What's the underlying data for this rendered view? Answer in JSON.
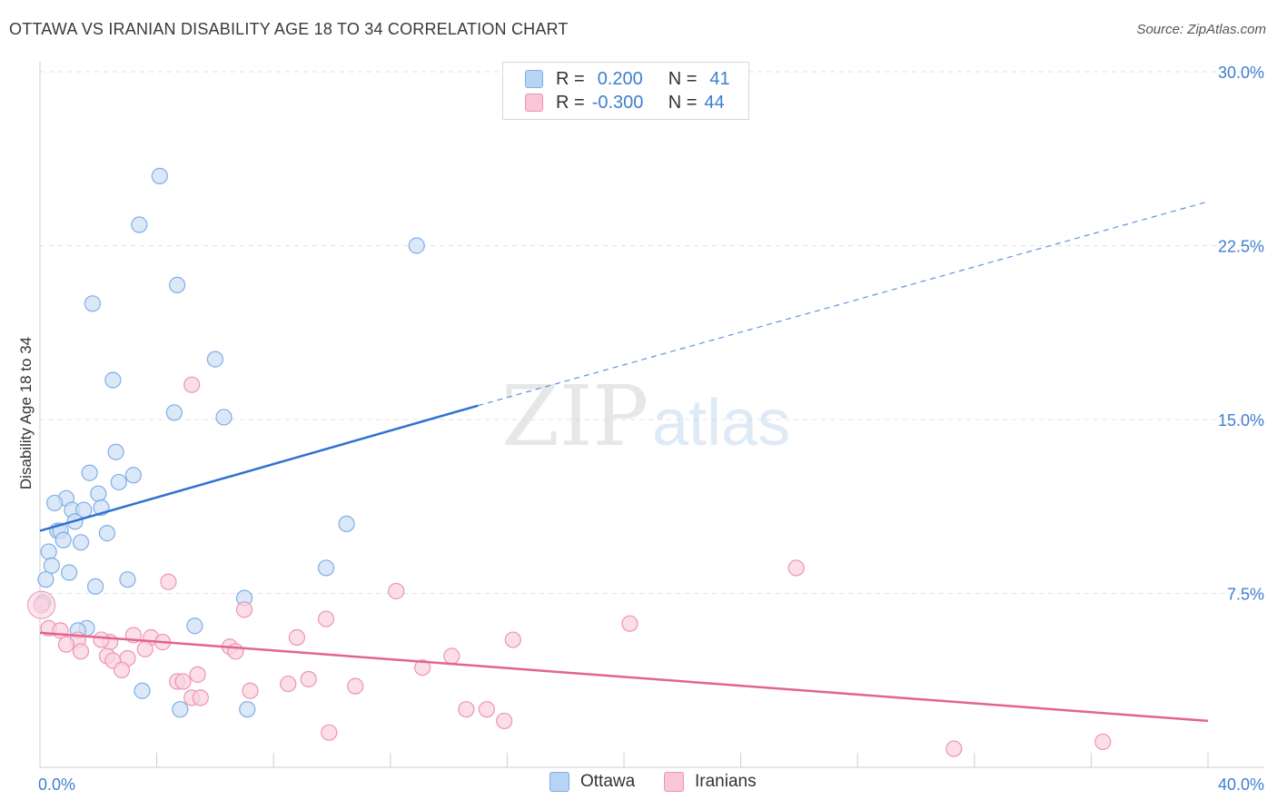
{
  "title": "OTTAWA VS IRANIAN DISABILITY AGE 18 TO 34 CORRELATION CHART",
  "source": "Source: ZipAtlas.com",
  "watermark": {
    "zip": "ZIP",
    "atlas": "atlas"
  },
  "legend": {
    "rows": [
      {
        "r_label": "R =",
        "r_value": "0.200",
        "n_label": "N =",
        "n_value": "41",
        "color": "#b8d4f4",
        "border": "#7faee6"
      },
      {
        "r_label": "R =",
        "r_value": "-0.300",
        "n_label": "N =",
        "n_value": "44",
        "color": "#f9c6d6",
        "border": "#ee94b2"
      }
    ]
  },
  "bottom_legend": [
    {
      "label": "Ottawa",
      "color": "#b8d4f4",
      "border": "#7faee6"
    },
    {
      "label": "Iranians",
      "color": "#f9c6d6",
      "border": "#ee94b2"
    }
  ],
  "chart_data": {
    "type": "scatter",
    "title": "OTTAWA VS IRANIAN DISABILITY AGE 18 TO 34 CORRELATION CHART",
    "xlabel": "",
    "ylabel": "Disability Age 18 to 34",
    "xlim": [
      0,
      40
    ],
    "ylim": [
      0,
      30
    ],
    "x_tick_labels": [
      "0.0%",
      "40.0%"
    ],
    "y_ticks": [
      7.5,
      15.0,
      22.5,
      30.0
    ],
    "y_tick_labels": [
      "7.5%",
      "15.0%",
      "22.5%",
      "30.0%"
    ],
    "grid": "horizontal dashed",
    "series": [
      {
        "name": "Ottawa",
        "color": "#7faee6",
        "fill": "#cfe0f6",
        "trend": {
          "x": [
            0,
            15
          ],
          "y": [
            10.2,
            15.6
          ],
          "extended_x": [
            15,
            40
          ],
          "extended_y": [
            15.6,
            24.4
          ]
        },
        "points": [
          [
            4.1,
            25.5
          ],
          [
            3.4,
            23.4
          ],
          [
            12.9,
            22.5
          ],
          [
            4.7,
            20.8
          ],
          [
            1.8,
            20.0
          ],
          [
            6.0,
            17.6
          ],
          [
            2.5,
            16.7
          ],
          [
            4.6,
            15.3
          ],
          [
            6.3,
            15.1
          ],
          [
            2.6,
            13.6
          ],
          [
            1.7,
            12.7
          ],
          [
            3.2,
            12.6
          ],
          [
            2.7,
            12.3
          ],
          [
            2.0,
            11.8
          ],
          [
            0.9,
            11.6
          ],
          [
            0.5,
            11.4
          ],
          [
            2.1,
            11.2
          ],
          [
            1.1,
            11.1
          ],
          [
            1.5,
            11.1
          ],
          [
            1.2,
            10.6
          ],
          [
            0.6,
            10.2
          ],
          [
            0.7,
            10.2
          ],
          [
            2.3,
            10.1
          ],
          [
            1.4,
            9.7
          ],
          [
            0.8,
            9.8
          ],
          [
            10.5,
            10.5
          ],
          [
            0.3,
            9.3
          ],
          [
            0.4,
            8.7
          ],
          [
            1.0,
            8.4
          ],
          [
            9.8,
            8.6
          ],
          [
            0.2,
            8.1
          ],
          [
            3.0,
            8.1
          ],
          [
            1.9,
            7.8
          ],
          [
            7.0,
            7.3
          ],
          [
            0.1,
            7.1
          ],
          [
            5.3,
            6.1
          ],
          [
            1.6,
            6.0
          ],
          [
            1.3,
            5.9
          ],
          [
            3.5,
            3.3
          ],
          [
            4.8,
            2.5
          ],
          [
            7.1,
            2.5
          ]
        ]
      },
      {
        "name": "Iranians",
        "color": "#ee94b2",
        "fill": "#fad3df",
        "trend": {
          "x": [
            0,
            40
          ],
          "y": [
            5.8,
            2.0
          ]
        },
        "points": [
          [
            0.05,
            7.0
          ],
          [
            5.2,
            16.5
          ],
          [
            25.9,
            8.6
          ],
          [
            4.4,
            8.0
          ],
          [
            12.2,
            7.6
          ],
          [
            7.0,
            6.8
          ],
          [
            9.8,
            6.4
          ],
          [
            20.2,
            6.2
          ],
          [
            0.3,
            6.0
          ],
          [
            0.7,
            5.9
          ],
          [
            3.2,
            5.7
          ],
          [
            3.8,
            5.6
          ],
          [
            8.8,
            5.6
          ],
          [
            16.2,
            5.5
          ],
          [
            1.3,
            5.5
          ],
          [
            2.4,
            5.4
          ],
          [
            2.1,
            5.5
          ],
          [
            4.2,
            5.4
          ],
          [
            0.9,
            5.3
          ],
          [
            6.5,
            5.2
          ],
          [
            3.6,
            5.1
          ],
          [
            6.7,
            5.0
          ],
          [
            1.4,
            5.0
          ],
          [
            14.1,
            4.8
          ],
          [
            2.3,
            4.8
          ],
          [
            3.0,
            4.7
          ],
          [
            2.5,
            4.6
          ],
          [
            13.1,
            4.3
          ],
          [
            2.8,
            4.2
          ],
          [
            5.4,
            4.0
          ],
          [
            4.7,
            3.7
          ],
          [
            4.9,
            3.7
          ],
          [
            9.2,
            3.8
          ],
          [
            8.5,
            3.6
          ],
          [
            10.8,
            3.5
          ],
          [
            7.2,
            3.3
          ],
          [
            5.2,
            3.0
          ],
          [
            5.5,
            3.0
          ],
          [
            14.6,
            2.5
          ],
          [
            15.3,
            2.5
          ],
          [
            15.9,
            2.0
          ],
          [
            9.9,
            1.5
          ],
          [
            31.3,
            0.8
          ],
          [
            36.4,
            1.1
          ]
        ]
      }
    ]
  }
}
